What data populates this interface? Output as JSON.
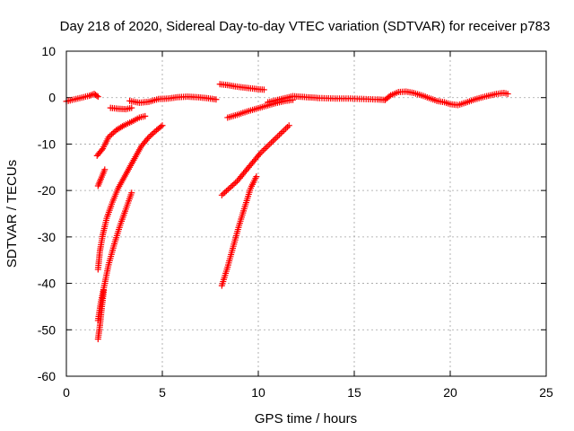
{
  "chart_data": {
    "type": "scatter",
    "title": "Day 218 of 2020, Sidereal Day-to-day VTEC variation (SDTVAR) for receiver p783",
    "xlabel": "GPS time / hours",
    "ylabel": "SDTVAR / TECUs",
    "xlim": [
      0,
      25
    ],
    "ylim": [
      -60,
      10
    ],
    "xticks": [
      0,
      5,
      10,
      15,
      20,
      25
    ],
    "yticks": [
      -60,
      -50,
      -40,
      -30,
      -20,
      -10,
      0,
      10
    ],
    "x_tick_labels": [
      "0",
      "5",
      "10",
      "15",
      "20",
      "25"
    ],
    "y_tick_labels": [
      "-60",
      "-50",
      "-40",
      "-30",
      "-20",
      "-10",
      "0",
      "10"
    ],
    "grid": true,
    "marker": "plus",
    "series": [
      {
        "color": "#ff0000",
        "segments": [
          [
            [
              0.0,
              -0.8
            ],
            [
              0.3,
              -0.5
            ],
            [
              0.6,
              -0.2
            ],
            [
              0.9,
              0.1
            ],
            [
              1.2,
              0.4
            ],
            [
              1.45,
              0.8
            ],
            [
              1.65,
              0.2
            ]
          ],
          [
            [
              1.6,
              -12.5
            ],
            [
              1.9,
              -11.0
            ],
            [
              2.2,
              -8.5
            ],
            [
              2.6,
              -7.0
            ],
            [
              3.0,
              -6.0
            ],
            [
              3.4,
              -5.2
            ],
            [
              3.8,
              -4.3
            ],
            [
              4.1,
              -4.0
            ]
          ],
          [
            [
              1.65,
              -19.0
            ],
            [
              1.8,
              -17.5
            ],
            [
              2.0,
              -15.5
            ]
          ],
          [
            [
              1.65,
              -37.0
            ],
            [
              1.75,
              -33.0
            ],
            [
              1.9,
              -29.5
            ],
            [
              2.1,
              -26.0
            ],
            [
              2.4,
              -22.5
            ],
            [
              2.7,
              -19.5
            ],
            [
              3.1,
              -16.5
            ],
            [
              3.5,
              -13.5
            ],
            [
              3.9,
              -10.5
            ],
            [
              4.3,
              -8.5
            ],
            [
              4.7,
              -7.0
            ],
            [
              5.0,
              -6.0
            ]
          ],
          [
            [
              1.65,
              -48.0
            ],
            [
              1.8,
              -44.0
            ],
            [
              2.0,
              -40.0
            ],
            [
              2.2,
              -36.0
            ],
            [
              2.5,
              -31.5
            ],
            [
              2.8,
              -27.5
            ],
            [
              3.1,
              -24.0
            ],
            [
              3.4,
              -20.5
            ]
          ],
          [
            [
              1.65,
              -52.0
            ],
            [
              1.75,
              -49.0
            ],
            [
              1.85,
              -45.0
            ],
            [
              1.95,
              -41.5
            ]
          ],
          [
            [
              2.3,
              -2.2
            ],
            [
              2.7,
              -2.4
            ],
            [
              3.1,
              -2.5
            ],
            [
              3.4,
              -2.2
            ]
          ],
          [
            [
              3.3,
              -0.7
            ],
            [
              3.8,
              -1.1
            ],
            [
              4.3,
              -0.9
            ],
            [
              4.8,
              -0.3
            ],
            [
              5.3,
              -0.2
            ],
            [
              5.8,
              0.1
            ],
            [
              6.3,
              0.2
            ],
            [
              6.8,
              0.1
            ],
            [
              7.3,
              -0.1
            ],
            [
              7.8,
              -0.4
            ]
          ],
          [
            [
              8.0,
              2.9
            ],
            [
              8.4,
              2.7
            ],
            [
              8.8,
              2.4
            ],
            [
              9.2,
              2.2
            ],
            [
              9.6,
              2.0
            ],
            [
              10.0,
              1.8
            ],
            [
              10.3,
              1.7
            ]
          ],
          [
            [
              8.1,
              -21.0
            ],
            [
              8.5,
              -19.5
            ],
            [
              8.9,
              -18.0
            ],
            [
              9.3,
              -16.0
            ],
            [
              9.7,
              -14.0
            ],
            [
              10.1,
              -12.0
            ],
            [
              10.6,
              -10.0
            ],
            [
              11.1,
              -8.0
            ],
            [
              11.6,
              -6.0
            ]
          ],
          [
            [
              8.1,
              -40.5
            ],
            [
              8.4,
              -36.5
            ],
            [
              8.7,
              -32.0
            ],
            [
              9.0,
              -27.5
            ],
            [
              9.3,
              -23.5
            ],
            [
              9.6,
              -19.5
            ],
            [
              9.9,
              -17.0
            ]
          ],
          [
            [
              8.4,
              -4.3
            ],
            [
              8.9,
              -3.7
            ],
            [
              9.4,
              -3.0
            ],
            [
              9.9,
              -2.4
            ],
            [
              10.4,
              -1.8
            ],
            [
              10.9,
              -1.2
            ],
            [
              11.4,
              -0.7
            ],
            [
              11.8,
              -0.5
            ]
          ],
          [
            [
              10.5,
              -1.0
            ],
            [
              11.2,
              -0.3
            ],
            [
              11.8,
              0.3
            ],
            [
              12.5,
              0.1
            ],
            [
              13.2,
              -0.1
            ],
            [
              14.0,
              -0.2
            ],
            [
              14.8,
              -0.2
            ],
            [
              15.5,
              -0.3
            ],
            [
              16.2,
              -0.4
            ],
            [
              16.6,
              -0.5
            ]
          ],
          [
            [
              16.6,
              -0.5
            ],
            [
              16.9,
              0.5
            ],
            [
              17.3,
              1.2
            ],
            [
              17.7,
              1.3
            ],
            [
              18.1,
              1.0
            ],
            [
              18.5,
              0.5
            ],
            [
              18.9,
              -0.1
            ],
            [
              19.3,
              -0.7
            ],
            [
              19.7,
              -1.0
            ],
            [
              20.0,
              -1.4
            ],
            [
              20.4,
              -1.6
            ],
            [
              20.8,
              -1.1
            ],
            [
              21.2,
              -0.5
            ],
            [
              21.6,
              0.0
            ],
            [
              22.0,
              0.4
            ],
            [
              22.4,
              0.8
            ],
            [
              22.8,
              1.0
            ],
            [
              23.0,
              0.8
            ]
          ]
        ]
      }
    ]
  }
}
